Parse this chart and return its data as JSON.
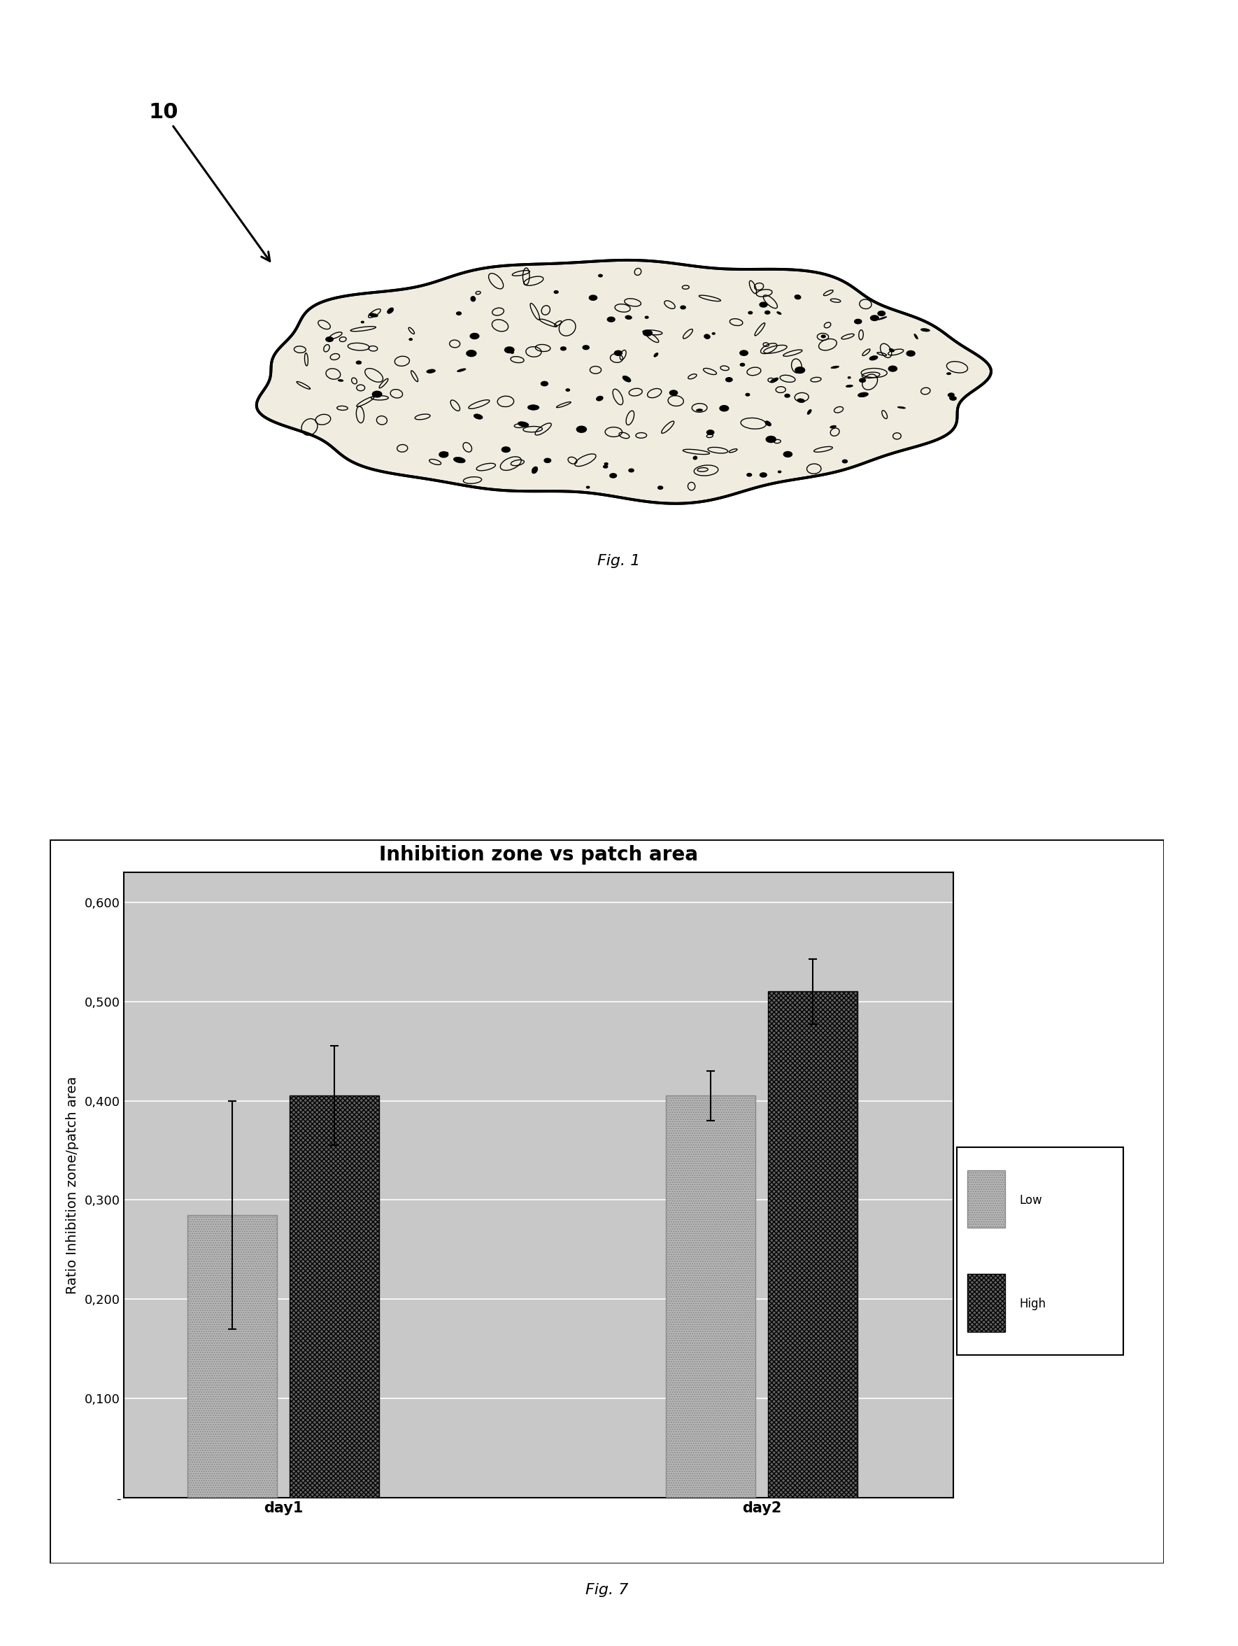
{
  "title": "Inhibition zone vs patch area",
  "ylabel": "Ratio Inhibition zone/patch area",
  "groups": [
    "day1",
    "day2"
  ],
  "low_values": [
    0.285,
    0.405
  ],
  "high_values": [
    0.405,
    0.51
  ],
  "low_errors": [
    0.115,
    0.025
  ],
  "high_errors": [
    0.05,
    0.033
  ],
  "low_color": "#b8b8b8",
  "high_color": "#606060",
  "legend_low": "Low",
  "legend_high": "High",
  "fig1_label": "Fig. 1",
  "fig7_label": "Fig. 7",
  "ref_label": "10",
  "title_fontsize": 20,
  "axis_label_fontsize": 14,
  "tick_fontsize": 13,
  "legend_fontsize": 13,
  "fig_label_fontsize": 16,
  "plot_bg_color": "#c8c8c8"
}
